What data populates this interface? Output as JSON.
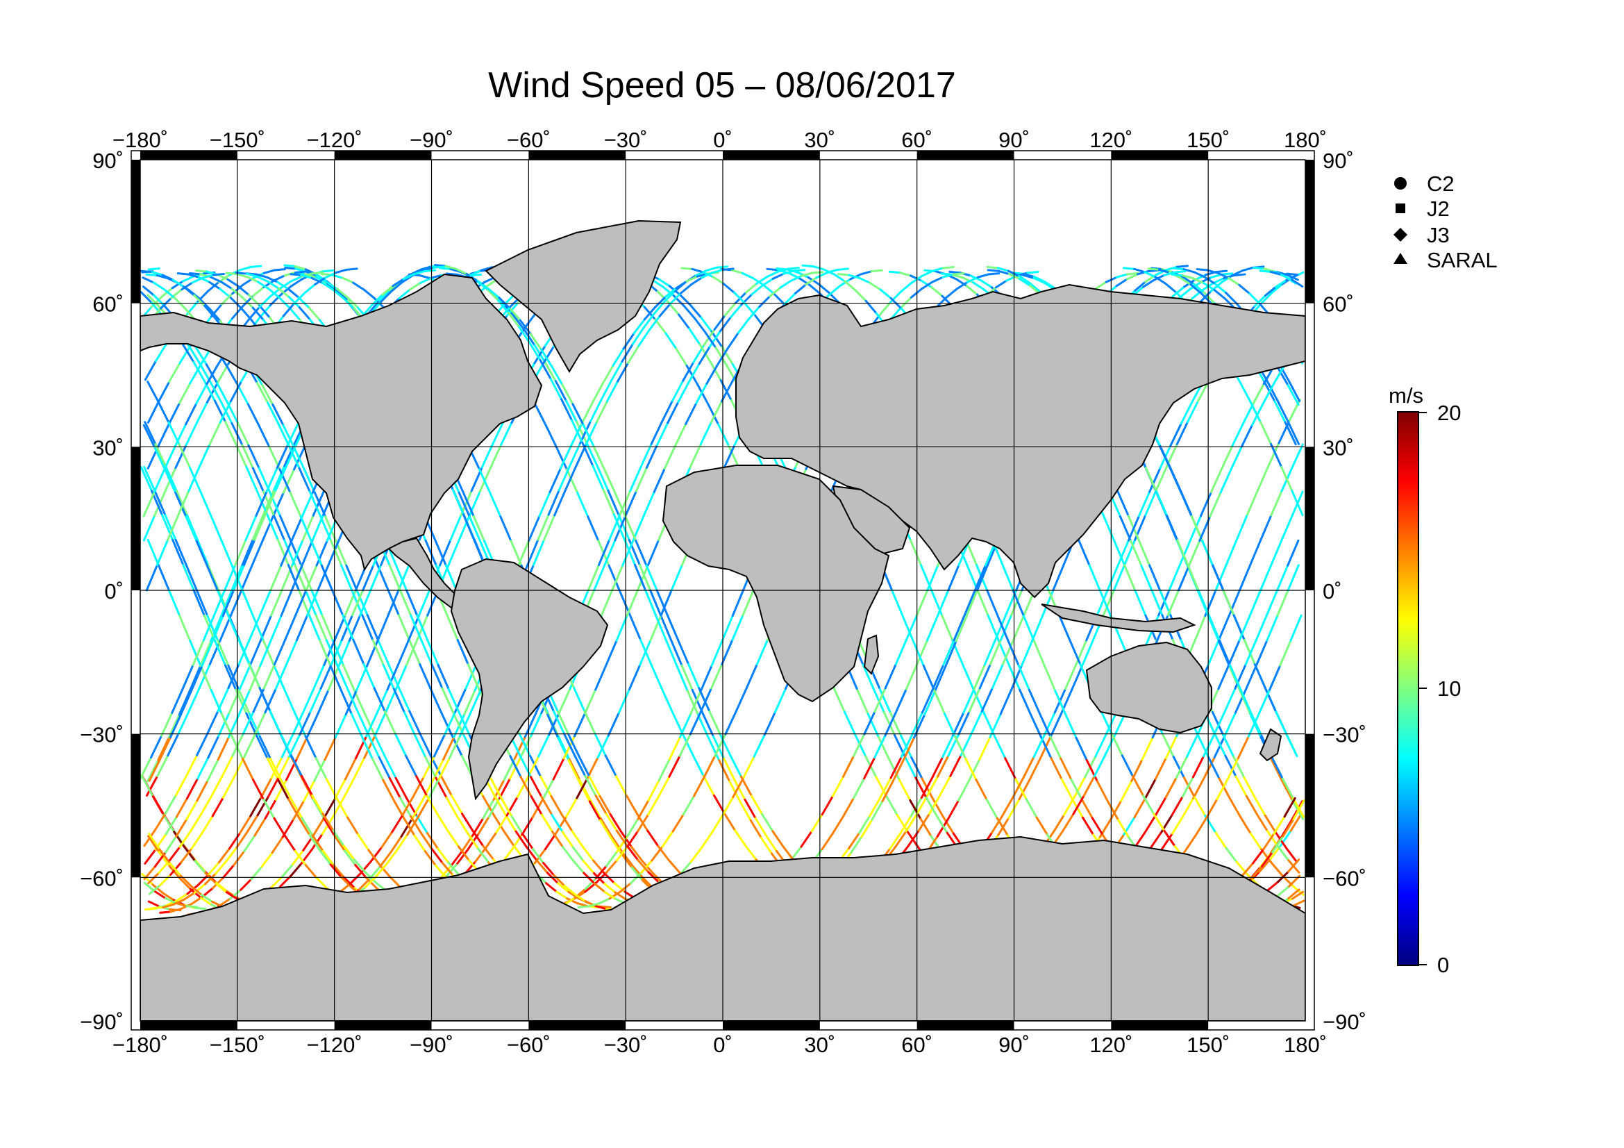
{
  "title": "Wind Speed 05 – 08/06/2017",
  "map": {
    "projection": "equirectangular",
    "lon_range": [
      -180,
      180
    ],
    "lat_range": [
      -90,
      90
    ],
    "lon_ticks": [
      "−180˚",
      "−150˚",
      "−120˚",
      "−90˚",
      "−60˚",
      "−30˚",
      "0˚",
      "30˚",
      "60˚",
      "90˚",
      "120˚",
      "150˚",
      "180˚"
    ],
    "lat_ticks": [
      "90˚",
      "60˚",
      "30˚",
      "0˚",
      "−30˚",
      "−60˚",
      "−90˚"
    ],
    "land_color": "#bebebe",
    "ocean_color": "#ffffff",
    "coast_color": "#000000",
    "grid": true
  },
  "legend": {
    "items": [
      {
        "symbol": "circle",
        "label": "C2"
      },
      {
        "symbol": "square",
        "label": "J2"
      },
      {
        "symbol": "diamond",
        "label": "J3"
      },
      {
        "symbol": "triangle",
        "label": "SARAL"
      }
    ]
  },
  "colorbar": {
    "unit": "m/s",
    "ticks": [
      "20",
      "10",
      "0"
    ],
    "range": [
      0,
      20
    ],
    "colors": [
      "#00007f",
      "#0000ff",
      "#007fff",
      "#00ffff",
      "#7fff7f",
      "#ffff00",
      "#ff7f00",
      "#ff0000",
      "#7f0000"
    ]
  },
  "chart_data": {
    "type": "scatter",
    "title": "Wind Speed 05 – 08/06/2017",
    "xlabel": "",
    "ylabel": "",
    "xlim": [
      -180,
      180
    ],
    "ylim": [
      -90,
      90
    ],
    "value_range": [
      0,
      20
    ],
    "value_unit": "m/s",
    "series": [
      {
        "name": "C2"
      },
      {
        "name": "J2"
      },
      {
        "name": "J3"
      },
      {
        "name": "SARAL"
      }
    ]
  }
}
